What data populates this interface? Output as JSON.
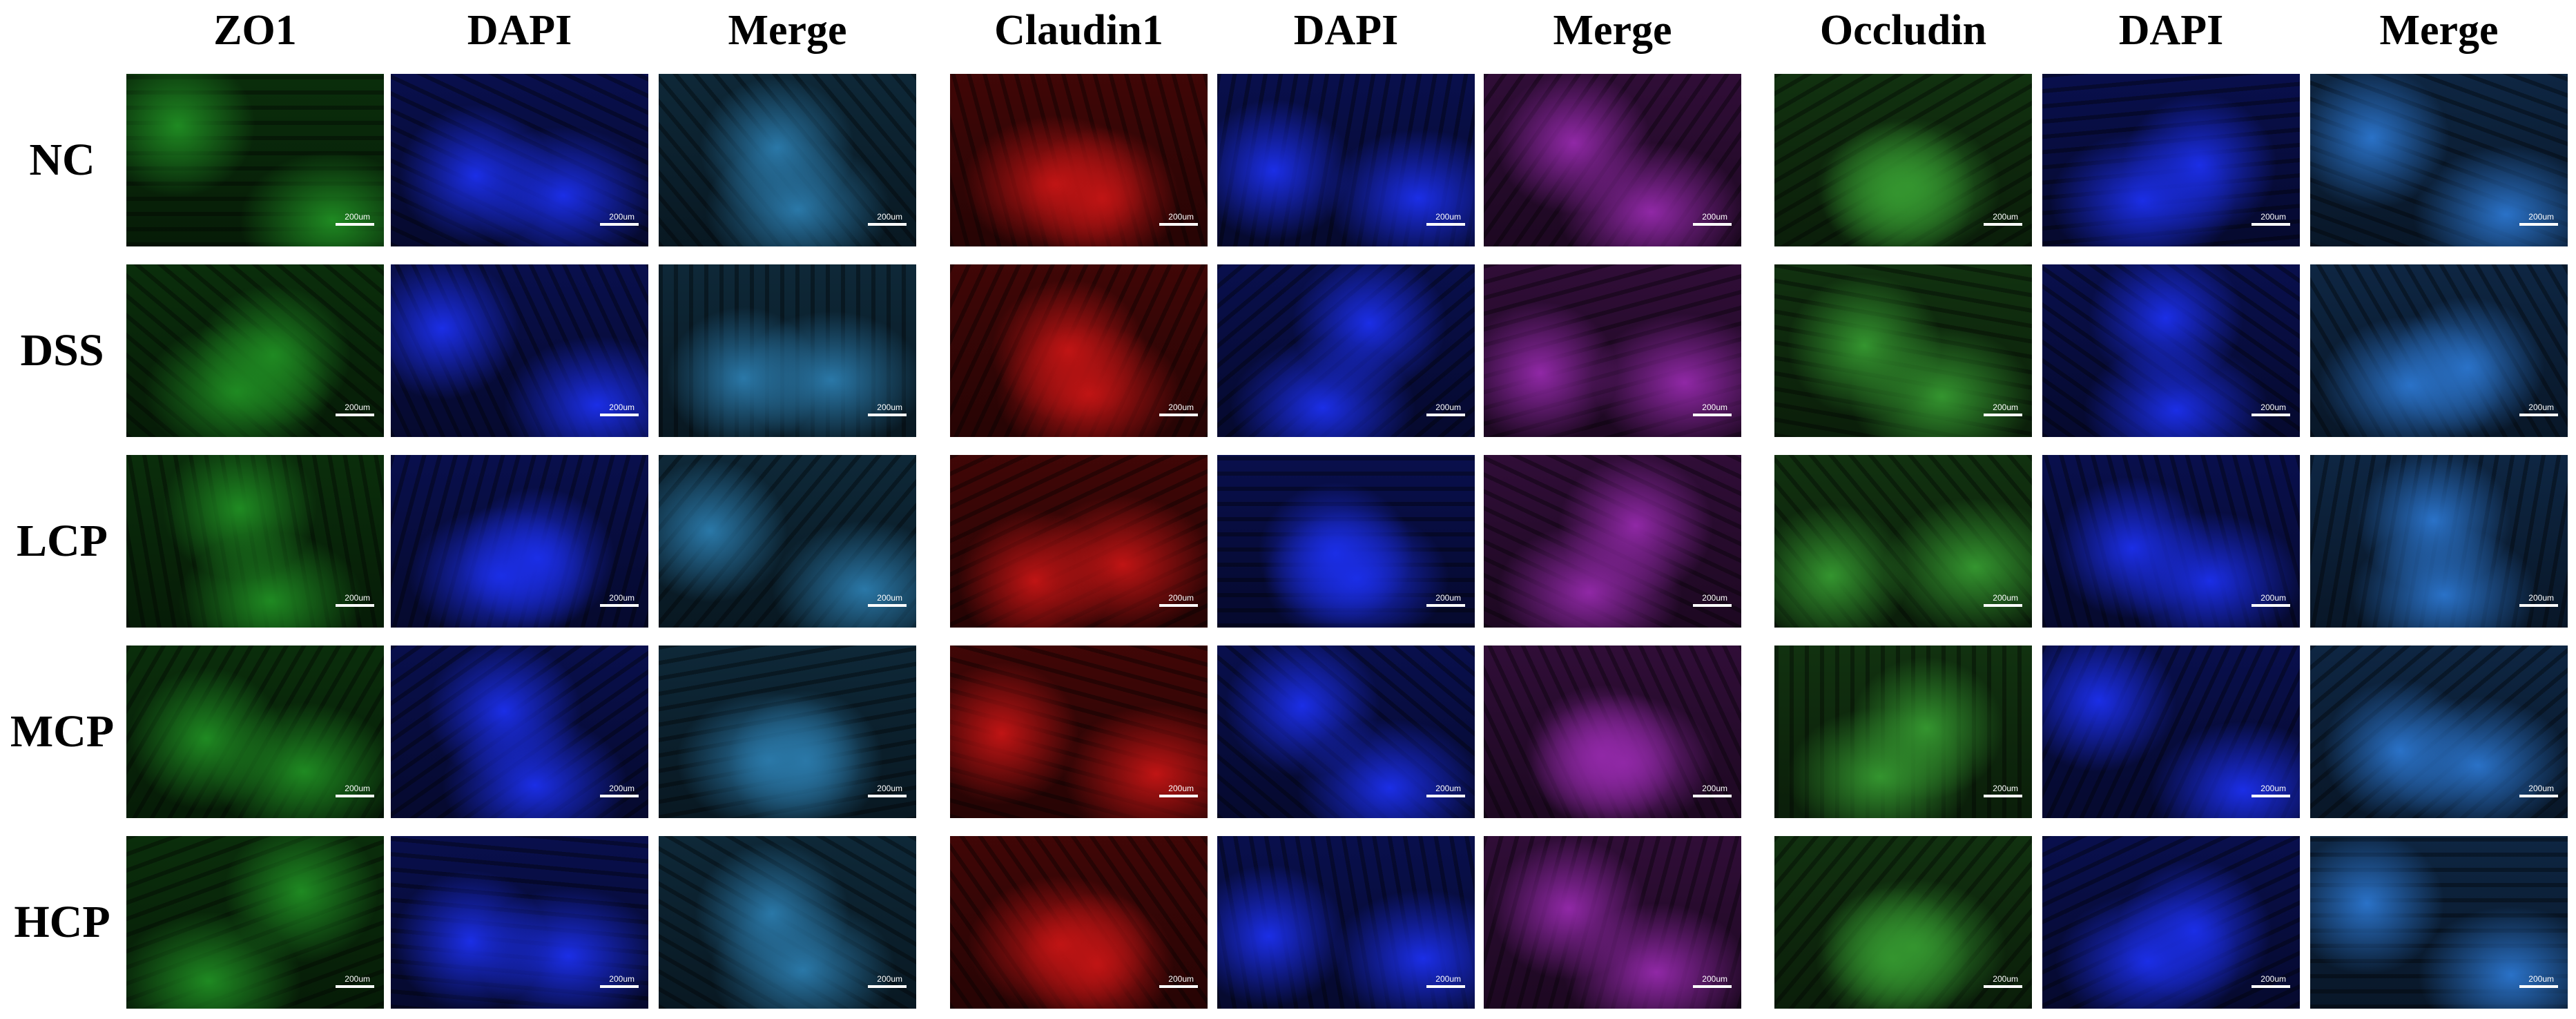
{
  "header": {
    "columns": [
      "ZO1",
      "DAPI",
      "Merge",
      "Claudin1",
      "DAPI",
      "Merge",
      "Occludin",
      "DAPI",
      "Merge"
    ]
  },
  "rows": [
    {
      "label": "NC"
    },
    {
      "label": "DSS"
    },
    {
      "label": "LCP"
    },
    {
      "label": "MCP"
    },
    {
      "label": "HCP"
    }
  ],
  "scale_bar": "200um"
}
